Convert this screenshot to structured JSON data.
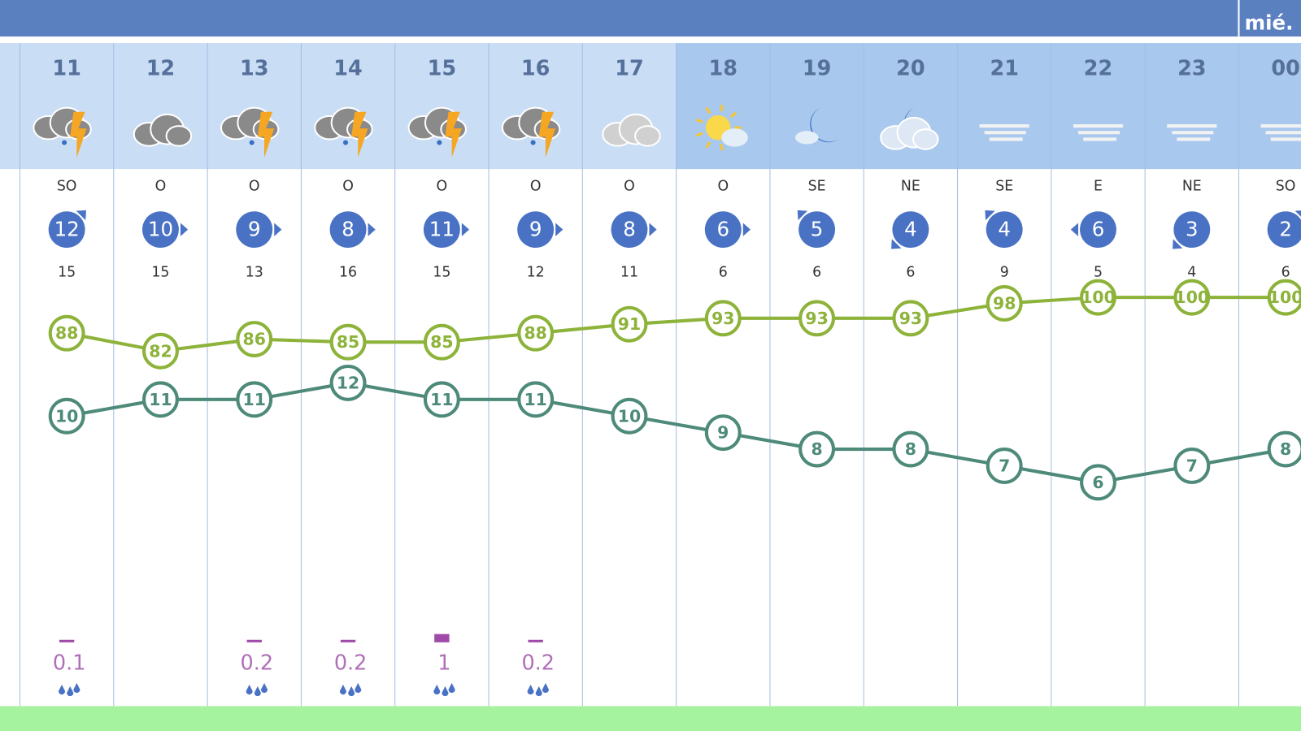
{
  "header": {
    "day_label": "mié."
  },
  "hours": [
    {
      "hour": "11",
      "wind_dir": "SO",
      "wind_speed": 12,
      "gust": 15,
      "humidity": 88,
      "temperature": 10,
      "precip": 0.1
    },
    {
      "hour": "12",
      "wind_dir": "O",
      "wind_speed": 10,
      "gust": 15,
      "humidity": 82,
      "temperature": 11,
      "precip": null
    },
    {
      "hour": "13",
      "wind_dir": "O",
      "wind_speed": 9,
      "gust": 13,
      "humidity": 86,
      "temperature": 11,
      "precip": 0.2
    },
    {
      "hour": "14",
      "wind_dir": "O",
      "wind_speed": 8,
      "gust": 16,
      "humidity": 85,
      "temperature": 12,
      "precip": 0.2
    },
    {
      "hour": "15",
      "wind_dir": "O",
      "wind_speed": 11,
      "gust": 15,
      "humidity": 85,
      "temperature": 11,
      "precip": 1
    },
    {
      "hour": "16",
      "wind_dir": "O",
      "wind_speed": 9,
      "gust": 12,
      "humidity": 88,
      "temperature": 11,
      "precip": 0.2
    },
    {
      "hour": "17",
      "wind_dir": "O",
      "wind_speed": 8,
      "gust": 11,
      "humidity": 91,
      "temperature": 10,
      "precip": null
    },
    {
      "hour": "18",
      "wind_dir": "O",
      "wind_speed": 6,
      "gust": 6,
      "humidity": 93,
      "temperature": 9,
      "precip": null
    },
    {
      "hour": "19",
      "wind_dir": "SE",
      "wind_speed": 5,
      "gust": 6,
      "humidity": 93,
      "temperature": 8,
      "precip": null
    },
    {
      "hour": "20",
      "wind_dir": "NE",
      "wind_speed": 4,
      "gust": 6,
      "humidity": 93,
      "temperature": 8,
      "precip": null
    },
    {
      "hour": "21",
      "wind_dir": "SE",
      "wind_speed": 4,
      "gust": 9,
      "humidity": 98,
      "temperature": 7,
      "precip": null
    },
    {
      "hour": "22",
      "wind_dir": "E",
      "wind_speed": 6,
      "gust": 5,
      "humidity": 100,
      "temperature": 6,
      "precip": null
    },
    {
      "hour": "23",
      "wind_dir": "NE",
      "wind_speed": 3,
      "gust": 4,
      "humidity": 100,
      "temperature": 7,
      "precip": null
    },
    {
      "hour": "00",
      "wind_dir": "SO",
      "wind_speed": 2,
      "gust": 6,
      "humidity": 100,
      "temperature": 8,
      "precip": null
    }
  ]
}
